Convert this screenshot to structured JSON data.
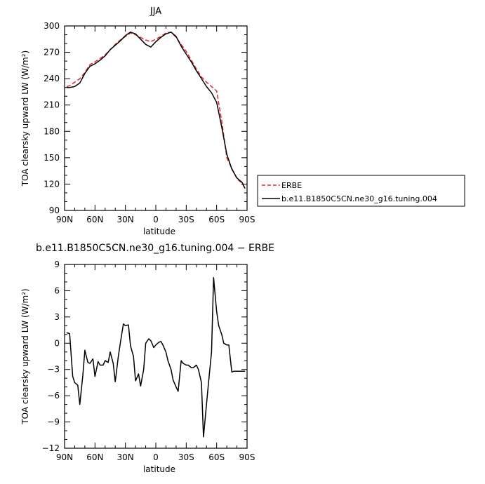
{
  "chart_data": [
    {
      "type": "line",
      "title": "JJA",
      "xlabel": "latitude",
      "ylabel": "TOA clearsky upward LW (W/m²)",
      "xlim": [
        90,
        -90
      ],
      "ylim": [
        90,
        300
      ],
      "xticks": [
        90,
        60,
        30,
        0,
        -30,
        -60,
        -90
      ],
      "xtick_labels": [
        "90N",
        "60N",
        "30N",
        "0",
        "30S",
        "60S",
        "90S"
      ],
      "yticks": [
        90,
        120,
        150,
        180,
        210,
        240,
        270,
        300
      ],
      "ytick_labels": [
        "90",
        "120",
        "150",
        "180",
        "210",
        "240",
        "270",
        "300"
      ],
      "legend": {
        "placement": "right",
        "entries": [
          "ERBE",
          "b.e11.B1850C5CN.ne30_g16.tuning.004"
        ]
      },
      "series": [
        {
          "name": "ERBE",
          "color": "#e8262a",
          "dash": "dashed",
          "x": [
            88,
            85,
            80,
            75,
            70,
            65,
            60,
            55,
            50,
            45,
            40,
            35,
            30,
            25,
            20,
            15,
            10,
            5,
            0,
            -5,
            -10,
            -15,
            -20,
            -25,
            -30,
            -35,
            -40,
            -45,
            -50,
            -55,
            -60,
            -65,
            -70,
            -75,
            -80,
            -85,
            -88
          ],
          "y": [
            231,
            232,
            236,
            240,
            247,
            256,
            259,
            263,
            267,
            273,
            279,
            284,
            288,
            292,
            290,
            287,
            284,
            282,
            285,
            288,
            292,
            293,
            287,
            279,
            271,
            261,
            251,
            242,
            236,
            231,
            226,
            192,
            150,
            138,
            126,
            121,
            115
          ]
        },
        {
          "name": "b.e11.B1850C5CN.ne30_g16.tuning.004",
          "color": "#000000",
          "dash": "solid",
          "x": [
            88,
            85,
            80,
            75,
            70,
            65,
            60,
            55,
            50,
            45,
            40,
            35,
            30,
            25,
            20,
            15,
            10,
            5,
            0,
            -5,
            -10,
            -15,
            -20,
            -25,
            -30,
            -35,
            -40,
            -45,
            -50,
            -55,
            -60,
            -65,
            -70,
            -75,
            -80,
            -85,
            -88
          ],
          "y": [
            230,
            230,
            231,
            235,
            246,
            254,
            257,
            261,
            266,
            273,
            278,
            283,
            289,
            293,
            291,
            285,
            279,
            276,
            282,
            287,
            291,
            293,
            288,
            277,
            268,
            259,
            249,
            240,
            231,
            224,
            213,
            185,
            154,
            137,
            127,
            122,
            115
          ]
        }
      ]
    },
    {
      "type": "line",
      "title": "b.e11.B1850C5CN.ne30_g16.tuning.004 − ERBE",
      "xlabel": "latitude",
      "ylabel": "TOA clearsky upward LW (W/m²)",
      "xlim": [
        90,
        -90
      ],
      "ylim": [
        -12,
        9
      ],
      "xticks": [
        90,
        60,
        30,
        0,
        -30,
        -60,
        -90
      ],
      "xtick_labels": [
        "90N",
        "60N",
        "30N",
        "0",
        "30S",
        "60S",
        "90S"
      ],
      "yticks": [
        -12,
        -9,
        -6,
        -3,
        0,
        3,
        6,
        9
      ],
      "ytick_labels": [
        "−12",
        "−9",
        "−6",
        "−3",
        "0",
        "3",
        "6",
        "9"
      ],
      "series": [
        {
          "color": "#000000",
          "dash": "solid",
          "x": [
            88,
            85,
            82,
            80,
            77,
            75,
            72,
            70,
            67,
            65,
            62,
            60,
            57,
            55,
            52,
            50,
            47,
            45,
            42,
            40,
            37,
            35,
            32,
            30,
            27,
            25,
            22,
            20,
            17,
            15,
            12,
            10,
            7,
            5,
            2,
            0,
            -3,
            -5,
            -7,
            -10,
            -12,
            -15,
            -17,
            -20,
            -22,
            -25,
            -27,
            -30,
            -32,
            -35,
            -37,
            -40,
            -42,
            -45,
            -47,
            -50,
            -52,
            -55,
            -57,
            -60,
            -62,
            -65,
            -67,
            -70,
            -72,
            -75,
            -77,
            -80,
            -82,
            -85,
            -87,
            -88
          ],
          "y": [
            1.2,
            1.1,
            -3.8,
            -4.5,
            -4.8,
            -7.0,
            -3.7,
            -0.8,
            -2.2,
            -2.3,
            -1.8,
            -3.8,
            -2.1,
            -2.5,
            -2.5,
            -2.0,
            -2.2,
            -1.0,
            -2.3,
            -4.4,
            -1.5,
            0.0,
            2.2,
            2.0,
            2.1,
            -0.3,
            -1.5,
            -4.3,
            -3.5,
            -4.9,
            -3.0,
            0.0,
            0.5,
            0.3,
            -0.5,
            -0.2,
            0.1,
            0.2,
            -0.2,
            -1.0,
            -2.0,
            -3.0,
            -4.2,
            -5.0,
            -5.5,
            -2.0,
            -2.3,
            -2.5,
            -2.5,
            -2.8,
            -2.8,
            -2.5,
            -3.0,
            -4.5,
            -10.7,
            -7.0,
            -4.5,
            -1.0,
            7.5,
            3.6,
            2.0,
            1.0,
            0.0,
            -0.2,
            -0.2,
            -3.3,
            -3.2,
            -3.2,
            -3.2,
            -3.2,
            -3.2,
            -3.2
          ]
        }
      ]
    }
  ]
}
